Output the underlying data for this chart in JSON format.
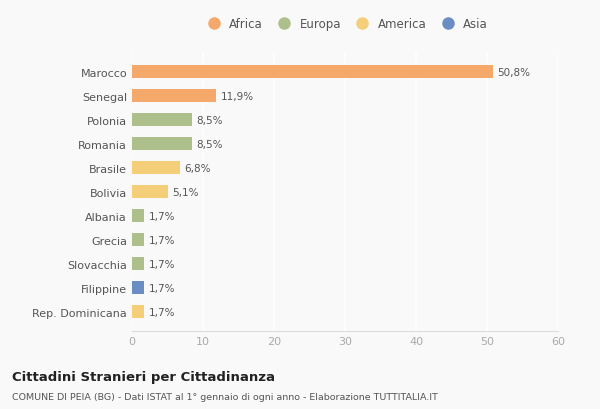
{
  "countries": [
    "Marocco",
    "Senegal",
    "Polonia",
    "Romania",
    "Brasile",
    "Bolivia",
    "Albania",
    "Grecia",
    "Slovacchia",
    "Filippine",
    "Rep. Dominicana"
  ],
  "values": [
    50.8,
    11.9,
    8.5,
    8.5,
    6.8,
    5.1,
    1.7,
    1.7,
    1.7,
    1.7,
    1.7
  ],
  "labels": [
    "50,8%",
    "11,9%",
    "8,5%",
    "8,5%",
    "6,8%",
    "5,1%",
    "1,7%",
    "1,7%",
    "1,7%",
    "1,7%",
    "1,7%"
  ],
  "continents": [
    "Africa",
    "Africa",
    "Europa",
    "Europa",
    "America",
    "America",
    "Europa",
    "Europa",
    "Europa",
    "Asia",
    "America"
  ],
  "colors": {
    "Africa": "#F4A96A",
    "Europa": "#ADBF8A",
    "America": "#F5CE7A",
    "Asia": "#6A8EC4"
  },
  "bar_colors": [
    "#F4A96A",
    "#F4A96A",
    "#ADBF8A",
    "#ADBF8A",
    "#F5CE7A",
    "#F5CE7A",
    "#ADBF8A",
    "#ADBF8A",
    "#ADBF8A",
    "#6A8EC4",
    "#F5CE7A"
  ],
  "xlim": [
    0,
    60
  ],
  "xticks": [
    0,
    10,
    20,
    30,
    40,
    50,
    60
  ],
  "title": "Cittadini Stranieri per Cittadinanza",
  "subtitle": "COMUNE DI PEIA (BG) - Dati ISTAT al 1° gennaio di ogni anno - Elaborazione TUTTITALIA.IT",
  "legend_order": [
    "Africa",
    "Europa",
    "America",
    "Asia"
  ],
  "background_color": "#f9f9f9",
  "grid_color": "#ffffff",
  "bar_height": 0.55
}
